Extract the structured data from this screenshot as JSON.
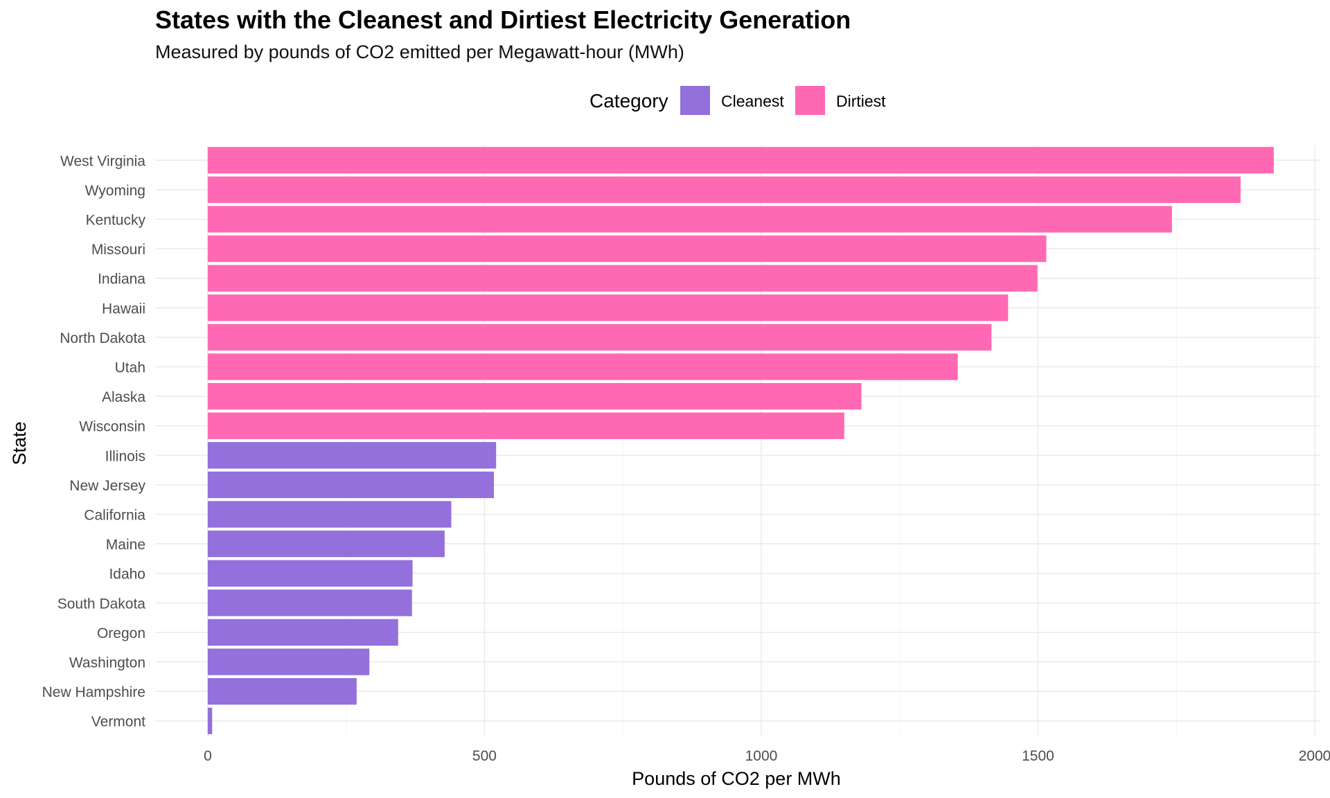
{
  "chart_data": {
    "type": "bar",
    "orientation": "horizontal",
    "title": "States with the Cleanest and Dirtiest Electricity Generation",
    "subtitle": "Measured by pounds of CO2 emitted per Megawatt-hour (MWh)",
    "xlabel": "Pounds of CO2 per MWh",
    "ylabel": "State",
    "xlim": [
      -95,
      2010
    ],
    "xticks": [
      0,
      500,
      1000,
      1500,
      2000
    ],
    "xtick_labels": [
      "0",
      "500",
      "1000",
      "1500",
      "2000"
    ],
    "grid": true,
    "legend": {
      "title": "Category",
      "placement": "top",
      "entries": [
        {
          "name": "Cleanest",
          "color": "#9370DB"
        },
        {
          "name": "Dirtiest",
          "color": "#FF69B4"
        }
      ]
    },
    "categories": [
      "West Virginia",
      "Wyoming",
      "Kentucky",
      "Missouri",
      "Indiana",
      "Hawaii",
      "North Dakota",
      "Utah",
      "Alaska",
      "Wisconsin",
      "Illinois",
      "New Jersey",
      "California",
      "Maine",
      "Idaho",
      "South Dakota",
      "Oregon",
      "Washington",
      "New Hampshire",
      "Vermont"
    ],
    "values": [
      1926,
      1866,
      1742,
      1515,
      1499,
      1446,
      1416,
      1355,
      1181,
      1150,
      521,
      517,
      440,
      428,
      370,
      369,
      344,
      292,
      269,
      8
    ],
    "category_group": [
      "Dirtiest",
      "Dirtiest",
      "Dirtiest",
      "Dirtiest",
      "Dirtiest",
      "Dirtiest",
      "Dirtiest",
      "Dirtiest",
      "Dirtiest",
      "Dirtiest",
      "Cleanest",
      "Cleanest",
      "Cleanest",
      "Cleanest",
      "Cleanest",
      "Cleanest",
      "Cleanest",
      "Cleanest",
      "Cleanest",
      "Cleanest"
    ]
  },
  "colors": {
    "Cleanest": "#9370DB",
    "Dirtiest": "#FF69B4",
    "grid_major": "#EBEBEB",
    "grid_minor": "#F5F5F5",
    "axis_text": "#4D4D4D"
  }
}
